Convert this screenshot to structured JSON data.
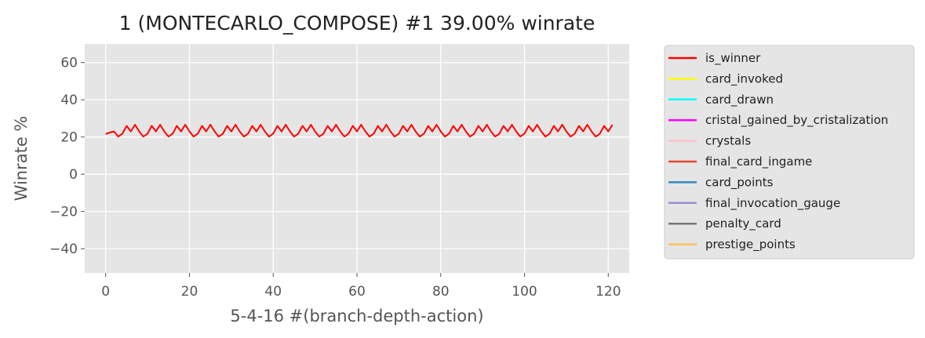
{
  "chart_data": {
    "type": "line",
    "title": "1 (MONTECARLO_COMPOSE) #1 39.00% winrate",
    "xlabel": "5-4-16 #(branch-depth-action)",
    "ylabel": "Winrate %",
    "xlim": [
      -5,
      125
    ],
    "ylim": [
      -53,
      70
    ],
    "xticks": [
      0,
      20,
      40,
      60,
      80,
      100,
      120
    ],
    "xtick_labels": [
      "0",
      "20",
      "40",
      "60",
      "80",
      "100",
      "120"
    ],
    "yticks": [
      -40,
      -20,
      0,
      20,
      40,
      60
    ],
    "ytick_labels": [
      "−40",
      "−20",
      "0",
      "20",
      "40",
      "60"
    ],
    "grid": true,
    "legend_position": "outside-right",
    "series": [
      {
        "name": "is_winner",
        "color": "#ff0000",
        "values": [
          21.6,
          22.4,
          23,
          20.2,
          21.8,
          26,
          23,
          26.6,
          23,
          20.2,
          21.8,
          26,
          23,
          26.6,
          23,
          20.2,
          21.8,
          26,
          23,
          26.6,
          23,
          20.2,
          21.8,
          26,
          23,
          26.6,
          23,
          20.2,
          21.8,
          26,
          23,
          26.6,
          23,
          20.2,
          21.8,
          26,
          23,
          26.6,
          23,
          20.2,
          21.8,
          26,
          23,
          26.6,
          23,
          20.2,
          21.8,
          26,
          23,
          26.6,
          23,
          20.2,
          21.8,
          26,
          23,
          26.6,
          23,
          20.2,
          21.8,
          26,
          23,
          26.6,
          23,
          20.2,
          21.8,
          26,
          23,
          26.6,
          23,
          20.2,
          21.8,
          26,
          23,
          26.6,
          23,
          20.2,
          21.8,
          26,
          23,
          26.6,
          23,
          20.2,
          21.8,
          26,
          23,
          26.6,
          23,
          20.2,
          21.8,
          26,
          23,
          26.6,
          23,
          20.2,
          21.8,
          26,
          23,
          26.6,
          23,
          20.2,
          21.8,
          26,
          23,
          26.6,
          23,
          20.2,
          21.8,
          26,
          23,
          26.6,
          23,
          20.2,
          21.8,
          26,
          23,
          26.6,
          23,
          20.2,
          21.8,
          26,
          23,
          26.6
        ]
      },
      {
        "name": "card_invoked",
        "color": "#ffff00",
        "values": []
      },
      {
        "name": "card_drawn",
        "color": "#00ffff",
        "values": []
      },
      {
        "name": "cristal_gained_by_cristalization",
        "color": "#ff00ff",
        "values": []
      },
      {
        "name": "crystals",
        "color": "#ffc0cb",
        "values": []
      },
      {
        "name": "final_card_ingame",
        "color": "#e24a33",
        "values": []
      },
      {
        "name": "card_points",
        "color": "#348abd",
        "values": []
      },
      {
        "name": "final_invocation_gauge",
        "color": "#988ed5",
        "values": []
      },
      {
        "name": "penalty_card",
        "color": "#777777",
        "values": []
      },
      {
        "name": "prestige_points",
        "color": "#fbc15e",
        "values": []
      }
    ]
  }
}
